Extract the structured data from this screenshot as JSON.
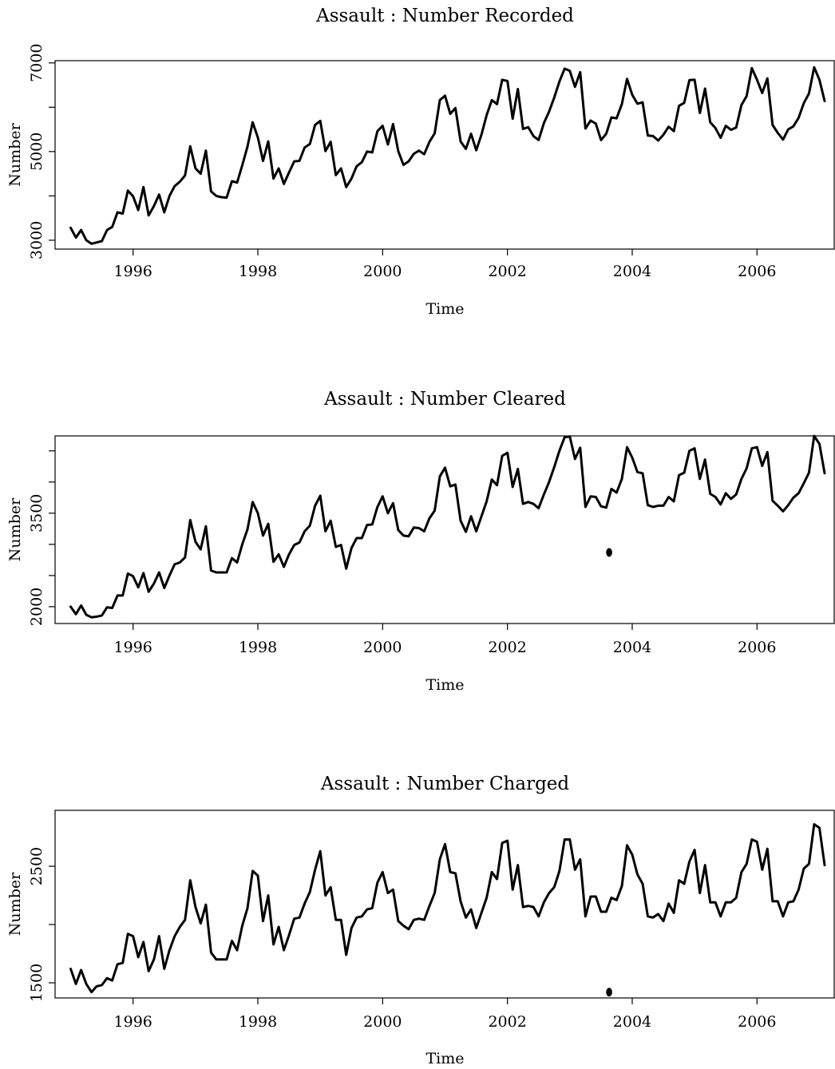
{
  "chart_data": [
    {
      "type": "line",
      "title": "Assault : Number Recorded",
      "xlabel": "Time",
      "ylabel": "Number",
      "xlim": [
        1994.75,
        2007.25
      ],
      "ylim": [
        2800,
        7050
      ],
      "x_ticks": [
        1996,
        1998,
        2000,
        2002,
        2004,
        2006
      ],
      "y_ticks": [
        3000,
        5000,
        7000
      ],
      "y_minor_ticks": [
        4000,
        6000
      ],
      "x_start": 1995.0,
      "x_step": 0.083333,
      "values": [
        3280,
        3060,
        3230,
        3000,
        2920,
        2950,
        2980,
        3230,
        3300,
        3630,
        3600,
        4120,
        3990,
        3680,
        4200,
        3560,
        3770,
        4030,
        3630,
        4000,
        4220,
        4320,
        4460,
        5120,
        4620,
        4500,
        5020,
        4100,
        4000,
        3970,
        3960,
        4330,
        4300,
        4690,
        5110,
        5660,
        5320,
        4790,
        5230,
        4390,
        4620,
        4270,
        4530,
        4780,
        4790,
        5090,
        5170,
        5600,
        5690,
        5010,
        5220,
        4470,
        4620,
        4200,
        4390,
        4670,
        4760,
        5000,
        4980,
        5460,
        5580,
        5160,
        5620,
        5010,
        4700,
        4780,
        4950,
        5020,
        4940,
        5220,
        5410,
        6160,
        6260,
        5850,
        5980,
        5230,
        5060,
        5400,
        5030,
        5380,
        5820,
        6160,
        6070,
        6620,
        6590,
        5740,
        6410,
        5510,
        5550,
        5350,
        5260,
        5640,
        5900,
        6220,
        6580,
        6870,
        6820,
        6460,
        6790,
        5520,
        5700,
        5630,
        5260,
        5400,
        5770,
        5750,
        6070,
        6640,
        6280,
        6080,
        6110,
        5360,
        5350,
        5250,
        5380,
        5560,
        5460,
        6030,
        6100,
        6610,
        6620,
        5870,
        6420,
        5660,
        5530,
        5310,
        5580,
        5490,
        5540,
        6050,
        6250,
        6880,
        6620,
        6320,
        6650,
        5600,
        5420,
        5270,
        5500,
        5570,
        5760,
        6090,
        6310,
        6900,
        6620,
        6140
      ]
    },
    {
      "type": "line",
      "title": "Assault : Number Cleared",
      "xlabel": "Time",
      "ylabel": "Number",
      "xlim": [
        1994.75,
        2007.25
      ],
      "ylim": [
        1730,
        4740
      ],
      "x_ticks": [
        1996,
        1998,
        2000,
        2002,
        2004,
        2006
      ],
      "y_ticks": [
        2000,
        3500
      ],
      "y_minor_ticks": [
        2500,
        3000,
        4000,
        4500
      ],
      "x_start": 1995.0,
      "x_step": 0.083333,
      "values": [
        2000,
        1880,
        2020,
        1870,
        1830,
        1840,
        1860,
        1990,
        1980,
        2180,
        2180,
        2530,
        2490,
        2310,
        2540,
        2240,
        2370,
        2550,
        2300,
        2500,
        2680,
        2710,
        2790,
        3390,
        3040,
        2920,
        3290,
        2580,
        2550,
        2550,
        2550,
        2780,
        2710,
        3000,
        3240,
        3680,
        3500,
        3140,
        3330,
        2720,
        2840,
        2640,
        2840,
        2990,
        3030,
        3210,
        3300,
        3620,
        3780,
        3210,
        3380,
        2960,
        2990,
        2610,
        2940,
        3100,
        3100,
        3310,
        3320,
        3600,
        3770,
        3500,
        3660,
        3230,
        3140,
        3130,
        3270,
        3260,
        3210,
        3420,
        3540,
        4090,
        4230,
        3930,
        3960,
        3380,
        3200,
        3450,
        3210,
        3450,
        3690,
        4040,
        3950,
        4420,
        4470,
        3920,
        4210,
        3650,
        3680,
        3650,
        3580,
        3800,
        4000,
        4240,
        4500,
        4720,
        4730,
        4370,
        4550,
        3600,
        3770,
        3760,
        3610,
        3590,
        3890,
        3830,
        4050,
        4560,
        4390,
        4160,
        4140,
        3630,
        3600,
        3620,
        3620,
        3760,
        3690,
        4110,
        4150,
        4500,
        4540,
        4050,
        4360,
        3810,
        3760,
        3640,
        3820,
        3730,
        3800,
        4050,
        4220,
        4540,
        4560,
        4260,
        4480,
        3700,
        3620,
        3530,
        3630,
        3750,
        3820,
        3980,
        4150,
        4740,
        4610,
        4140
      ],
      "outlier": {
        "x": 2003.63,
        "y": 2870
      }
    },
    {
      "type": "line",
      "title": "Assault : Number Charged",
      "xlabel": "Time",
      "ylabel": "Number",
      "xlim": [
        1994.75,
        2007.25
      ],
      "ylim": [
        1370,
        2980
      ],
      "x_ticks": [
        1996,
        1998,
        2000,
        2002,
        2004,
        2006
      ],
      "y_ticks": [
        1500,
        2500
      ],
      "y_minor_ticks": [
        2000
      ],
      "x_start": 1995.0,
      "x_step": 0.083333,
      "values": [
        1620,
        1490,
        1610,
        1490,
        1420,
        1470,
        1480,
        1540,
        1520,
        1660,
        1670,
        1920,
        1900,
        1720,
        1850,
        1600,
        1700,
        1900,
        1620,
        1780,
        1900,
        1980,
        2040,
        2380,
        2150,
        2010,
        2170,
        1760,
        1700,
        1700,
        1700,
        1860,
        1780,
        1990,
        2140,
        2460,
        2420,
        2030,
        2250,
        1830,
        1980,
        1780,
        1910,
        2050,
        2060,
        2180,
        2280,
        2470,
        2630,
        2250,
        2320,
        2040,
        2040,
        1740,
        1970,
        2060,
        2070,
        2130,
        2140,
        2360,
        2450,
        2270,
        2300,
        2030,
        1990,
        1960,
        2040,
        2050,
        2040,
        2160,
        2270,
        2560,
        2690,
        2450,
        2440,
        2200,
        2060,
        2130,
        1970,
        2100,
        2230,
        2450,
        2390,
        2700,
        2720,
        2300,
        2510,
        2150,
        2160,
        2150,
        2070,
        2190,
        2270,
        2320,
        2460,
        2730,
        2730,
        2470,
        2560,
        2070,
        2240,
        2240,
        2110,
        2110,
        2230,
        2210,
        2330,
        2680,
        2600,
        2430,
        2350,
        2070,
        2060,
        2090,
        2030,
        2180,
        2100,
        2380,
        2350,
        2540,
        2640,
        2270,
        2510,
        2190,
        2190,
        2070,
        2190,
        2190,
        2230,
        2450,
        2520,
        2730,
        2710,
        2470,
        2650,
        2200,
        2200,
        2070,
        2190,
        2200,
        2300,
        2480,
        2520,
        2860,
        2830,
        2510
      ],
      "outlier": {
        "x": 2003.63,
        "y": 1420
      }
    }
  ]
}
